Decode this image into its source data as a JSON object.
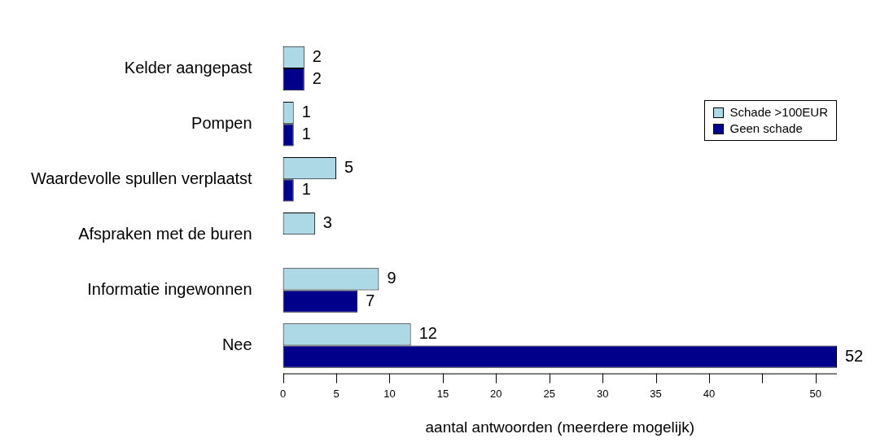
{
  "chart_data": {
    "type": "bar",
    "orientation": "horizontal",
    "xlabel": "aantal antwoorden (meerdere mogelijk)",
    "categories": [
      "Kelder aangepast",
      "Pompen",
      "Waardevolle spullen verplaatst",
      "Afspraken met de buren",
      "Informatie ingewonnen",
      "Nee"
    ],
    "series": [
      {
        "name": "Schade >100EUR",
        "color": "#add8e6",
        "values": [
          2,
          1,
          5,
          3,
          9,
          12
        ]
      },
      {
        "name": "Geen schade",
        "color": "#00008b",
        "values": [
          2,
          1,
          1,
          null,
          7,
          52
        ]
      }
    ],
    "xlim": [
      0,
      52
    ],
    "xticks": [
      0,
      5,
      10,
      15,
      20,
      25,
      30,
      35,
      40,
      {
        "value": 45,
        "label": null
      },
      50
    ],
    "grid": false,
    "legend": "top right",
    "data_labels": true
  }
}
